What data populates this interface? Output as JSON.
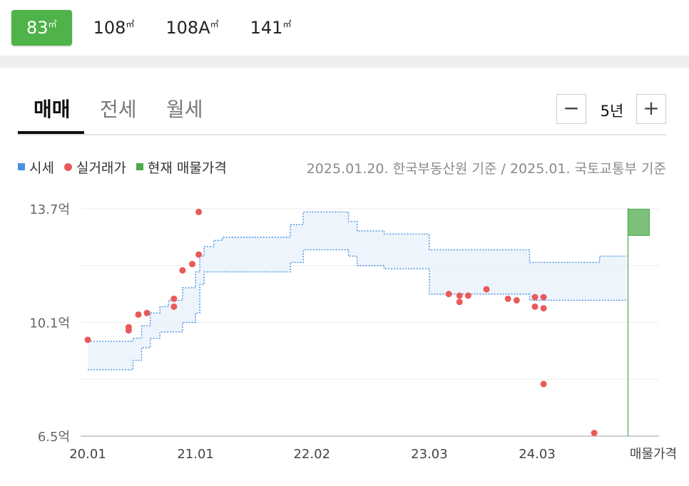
{
  "size_tabs": [
    {
      "label": "83",
      "unit": "㎡",
      "active": true
    },
    {
      "label": "108",
      "unit": "㎡",
      "active": false
    },
    {
      "label": "108A",
      "unit": "㎡",
      "active": false
    },
    {
      "label": "141",
      "unit": "㎡",
      "active": false
    }
  ],
  "deal_tabs": [
    "매매",
    "전세",
    "월세"
  ],
  "period": {
    "minus": "−",
    "label": "5년",
    "plus": "+"
  },
  "legend": {
    "sise": "시세",
    "actual": "실거래가",
    "current": "현재 매물가격"
  },
  "source_note": "2025.01.20. 한국부동산원 기준 / 2025.01. 국토교통부 기준",
  "colors": {
    "accent": "#4fb34a",
    "sise": "#4a90e2",
    "actual": "#e85a5a",
    "current": "#4caa4c"
  },
  "chart_data": {
    "type": "line",
    "y_unit": "억",
    "ylim": [
      6.5,
      13.7
    ],
    "y_ticks": [
      "13.7억",
      "10.1억",
      "6.5억"
    ],
    "x_ticks": [
      "20.01",
      "21.01",
      "22.02",
      "23.03",
      "24.03",
      "매물가격"
    ],
    "x_range": [
      2020.0,
      2025.05
    ],
    "sise_band": {
      "x": [
        2020.0,
        2020.38,
        2020.42,
        2020.5,
        2020.58,
        2020.67,
        2020.75,
        2020.88,
        2021.0,
        2021.04,
        2021.08,
        2021.17,
        2021.25,
        2021.5,
        2021.75,
        2021.88,
        2022.0,
        2022.25,
        2022.42,
        2022.5,
        2022.58,
        2022.75,
        2023.0,
        2023.17,
        2023.25,
        2023.5,
        2023.75,
        2024.0,
        2024.1,
        2024.25,
        2024.5,
        2024.75,
        2025.0
      ],
      "upper": [
        9.5,
        9.5,
        9.6,
        10.0,
        10.4,
        10.6,
        10.8,
        11.2,
        11.7,
        12.2,
        12.5,
        12.7,
        12.8,
        12.8,
        12.8,
        13.2,
        13.6,
        13.6,
        13.3,
        13.0,
        13.0,
        12.9,
        12.9,
        12.4,
        12.4,
        12.4,
        12.4,
        12.4,
        12.0,
        12.0,
        12.0,
        12.2,
        12.2
      ],
      "lower": [
        8.6,
        8.6,
        8.9,
        9.3,
        9.6,
        9.8,
        9.8,
        10.1,
        10.4,
        11.3,
        11.7,
        11.7,
        11.7,
        11.7,
        11.7,
        12.0,
        12.4,
        12.4,
        12.2,
        11.9,
        11.9,
        11.8,
        11.8,
        11.0,
        11.0,
        11.0,
        11.0,
        11.0,
        10.8,
        10.8,
        10.8,
        10.8,
        10.8
      ]
    },
    "actual_points": [
      {
        "x": 2020.0,
        "y": 9.55
      },
      {
        "x": 2020.38,
        "y": 9.85
      },
      {
        "x": 2020.38,
        "y": 9.95
      },
      {
        "x": 2020.47,
        "y": 10.35
      },
      {
        "x": 2020.55,
        "y": 10.4
      },
      {
        "x": 2020.8,
        "y": 10.6
      },
      {
        "x": 2020.8,
        "y": 10.85
      },
      {
        "x": 2020.88,
        "y": 11.75
      },
      {
        "x": 2020.97,
        "y": 11.95
      },
      {
        "x": 2021.03,
        "y": 12.25
      },
      {
        "x": 2021.03,
        "y": 13.6
      },
      {
        "x": 2023.35,
        "y": 11.0
      },
      {
        "x": 2023.45,
        "y": 10.95
      },
      {
        "x": 2023.45,
        "y": 10.75
      },
      {
        "x": 2023.53,
        "y": 10.95
      },
      {
        "x": 2023.7,
        "y": 11.15
      },
      {
        "x": 2023.9,
        "y": 10.85
      },
      {
        "x": 2023.98,
        "y": 10.8
      },
      {
        "x": 2024.15,
        "y": 10.9
      },
      {
        "x": 2024.15,
        "y": 10.6
      },
      {
        "x": 2024.23,
        "y": 10.9
      },
      {
        "x": 2024.23,
        "y": 10.55
      },
      {
        "x": 2024.23,
        "y": 8.15
      },
      {
        "x": 2024.7,
        "y": 6.6
      }
    ],
    "current_listing": {
      "x": 2025.0,
      "ymin": 12.9,
      "ymax": 13.8
    }
  }
}
